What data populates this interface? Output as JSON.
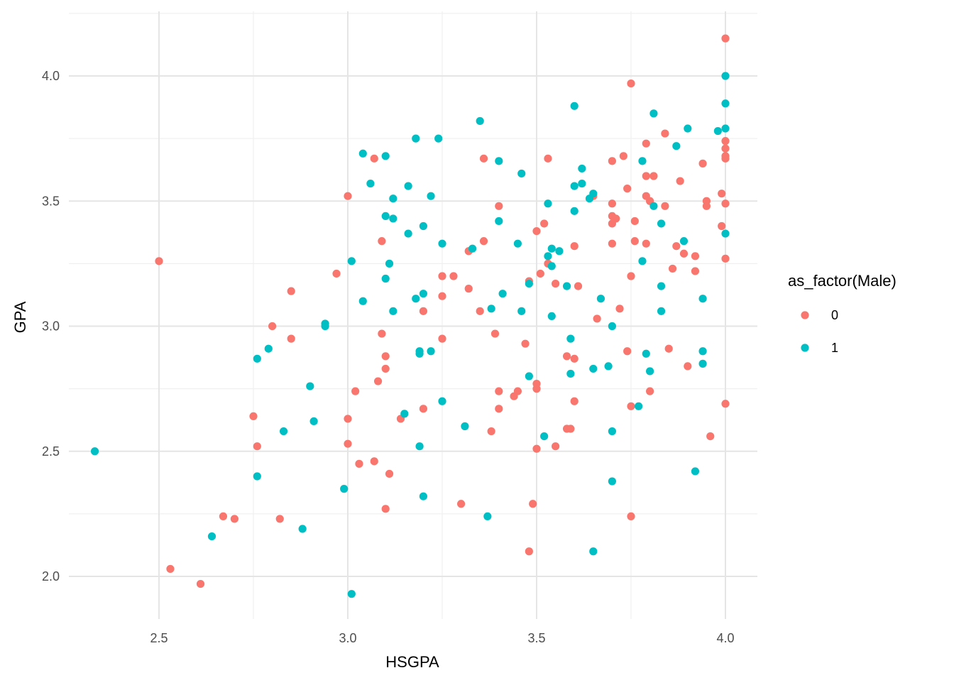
{
  "chart_data": {
    "type": "scatter",
    "title": "",
    "xlabel": "HSGPA",
    "ylabel": "GPA",
    "xlim": [
      2.3,
      4.08
    ],
    "ylim": [
      1.88,
      4.25
    ],
    "x_ticks": [
      2.5,
      3.0,
      3.5,
      4.0
    ],
    "x_tick_labels": [
      "2.5",
      "3.0",
      "3.5",
      "4.0"
    ],
    "y_ticks": [
      2.0,
      2.5,
      3.0,
      3.5,
      4.0
    ],
    "y_tick_labels": [
      "2.0",
      "2.5",
      "3.0",
      "3.5",
      "4.0"
    ],
    "grid": true,
    "legend": {
      "title": "as_factor(Male)",
      "position": "right",
      "entries": [
        "0",
        "1"
      ]
    },
    "colors": {
      "0": "#F8766D",
      "1": "#00BFC4"
    },
    "series": [
      {
        "name": "0",
        "color": "#F8766D",
        "points": [
          [
            4.0,
            4.15
          ],
          [
            3.75,
            3.97
          ],
          [
            3.84,
            3.77
          ],
          [
            3.79,
            3.73
          ],
          [
            4.0,
            3.74
          ],
          [
            4.0,
            3.71
          ],
          [
            4.0,
            3.68
          ],
          [
            4.0,
            3.67
          ],
          [
            3.73,
            3.68
          ],
          [
            3.53,
            3.67
          ],
          [
            3.36,
            3.67
          ],
          [
            3.07,
            3.67
          ],
          [
            3.7,
            3.66
          ],
          [
            3.94,
            3.65
          ],
          [
            3.79,
            3.6
          ],
          [
            3.81,
            3.6
          ],
          [
            3.88,
            3.58
          ],
          [
            3.74,
            3.55
          ],
          [
            3.99,
            3.53
          ],
          [
            3.79,
            3.52
          ],
          [
            3.0,
            3.52
          ],
          [
            3.8,
            3.5
          ],
          [
            3.95,
            3.5
          ],
          [
            3.65,
            3.52
          ],
          [
            3.95,
            3.48
          ],
          [
            3.84,
            3.48
          ],
          [
            3.7,
            3.49
          ],
          [
            4.0,
            3.49
          ],
          [
            3.4,
            3.48
          ],
          [
            3.7,
            3.44
          ],
          [
            3.71,
            3.43
          ],
          [
            3.7,
            3.41
          ],
          [
            3.52,
            3.41
          ],
          [
            3.76,
            3.42
          ],
          [
            3.99,
            3.4
          ],
          [
            3.5,
            3.38
          ],
          [
            3.76,
            3.34
          ],
          [
            3.79,
            3.33
          ],
          [
            3.7,
            3.33
          ],
          [
            3.09,
            3.34
          ],
          [
            3.36,
            3.34
          ],
          [
            3.87,
            3.32
          ],
          [
            3.6,
            3.32
          ],
          [
            3.32,
            3.3
          ],
          [
            3.89,
            3.29
          ],
          [
            3.92,
            3.28
          ],
          [
            4.0,
            3.27
          ],
          [
            2.5,
            3.26
          ],
          [
            3.53,
            3.25
          ],
          [
            3.86,
            3.23
          ],
          [
            3.92,
            3.22
          ],
          [
            3.51,
            3.21
          ],
          [
            2.97,
            3.21
          ],
          [
            3.25,
            3.2
          ],
          [
            3.28,
            3.2
          ],
          [
            3.75,
            3.2
          ],
          [
            3.48,
            3.18
          ],
          [
            3.55,
            3.17
          ],
          [
            3.61,
            3.16
          ],
          [
            3.32,
            3.15
          ],
          [
            2.85,
            3.14
          ],
          [
            3.25,
            3.12
          ],
          [
            3.72,
            3.07
          ],
          [
            3.35,
            3.06
          ],
          [
            3.2,
            3.06
          ],
          [
            3.66,
            3.03
          ],
          [
            2.8,
            3.0
          ],
          [
            3.09,
            2.97
          ],
          [
            3.39,
            2.97
          ],
          [
            2.85,
            2.95
          ],
          [
            3.25,
            2.95
          ],
          [
            3.47,
            2.93
          ],
          [
            3.85,
            2.91
          ],
          [
            3.74,
            2.9
          ],
          [
            3.1,
            2.88
          ],
          [
            3.58,
            2.88
          ],
          [
            3.6,
            2.87
          ],
          [
            3.9,
            2.84
          ],
          [
            3.1,
            2.83
          ],
          [
            3.08,
            2.78
          ],
          [
            3.5,
            2.77
          ],
          [
            3.5,
            2.75
          ],
          [
            3.02,
            2.74
          ],
          [
            3.4,
            2.74
          ],
          [
            3.45,
            2.74
          ],
          [
            3.8,
            2.74
          ],
          [
            3.44,
            2.72
          ],
          [
            3.6,
            2.7
          ],
          [
            4.0,
            2.69
          ],
          [
            3.75,
            2.68
          ],
          [
            3.2,
            2.67
          ],
          [
            3.4,
            2.67
          ],
          [
            2.75,
            2.64
          ],
          [
            3.14,
            2.63
          ],
          [
            3.0,
            2.63
          ],
          [
            3.58,
            2.59
          ],
          [
            3.59,
            2.59
          ],
          [
            3.38,
            2.58
          ],
          [
            3.96,
            2.56
          ],
          [
            3.0,
            2.53
          ],
          [
            2.76,
            2.52
          ],
          [
            3.55,
            2.52
          ],
          [
            3.5,
            2.51
          ],
          [
            3.07,
            2.46
          ],
          [
            3.03,
            2.45
          ],
          [
            3.11,
            2.41
          ],
          [
            3.3,
            2.29
          ],
          [
            3.49,
            2.29
          ],
          [
            3.1,
            2.27
          ],
          [
            2.67,
            2.24
          ],
          [
            3.75,
            2.24
          ],
          [
            2.7,
            2.23
          ],
          [
            2.82,
            2.23
          ],
          [
            3.48,
            2.1
          ],
          [
            2.53,
            2.03
          ],
          [
            2.61,
            1.97
          ]
        ]
      },
      {
        "name": "1",
        "color": "#00BFC4",
        "points": [
          [
            4.0,
            4.0
          ],
          [
            4.0,
            3.89
          ],
          [
            3.6,
            3.88
          ],
          [
            3.81,
            3.85
          ],
          [
            3.35,
            3.82
          ],
          [
            3.9,
            3.79
          ],
          [
            4.0,
            3.79
          ],
          [
            3.98,
            3.78
          ],
          [
            3.18,
            3.75
          ],
          [
            3.24,
            3.75
          ],
          [
            3.87,
            3.72
          ],
          [
            3.04,
            3.69
          ],
          [
            3.1,
            3.68
          ],
          [
            3.78,
            3.66
          ],
          [
            3.4,
            3.66
          ],
          [
            3.62,
            3.63
          ],
          [
            3.46,
            3.61
          ],
          [
            3.06,
            3.57
          ],
          [
            3.62,
            3.57
          ],
          [
            3.16,
            3.56
          ],
          [
            3.6,
            3.56
          ],
          [
            3.65,
            3.53
          ],
          [
            3.22,
            3.52
          ],
          [
            3.12,
            3.51
          ],
          [
            3.64,
            3.51
          ],
          [
            3.53,
            3.49
          ],
          [
            3.81,
            3.48
          ],
          [
            3.6,
            3.46
          ],
          [
            3.1,
            3.44
          ],
          [
            3.12,
            3.43
          ],
          [
            3.4,
            3.42
          ],
          [
            3.83,
            3.41
          ],
          [
            3.2,
            3.4
          ],
          [
            3.16,
            3.37
          ],
          [
            4.0,
            3.37
          ],
          [
            3.89,
            3.34
          ],
          [
            3.25,
            3.33
          ],
          [
            3.45,
            3.33
          ],
          [
            3.33,
            3.31
          ],
          [
            3.54,
            3.31
          ],
          [
            3.56,
            3.3
          ],
          [
            3.53,
            3.28
          ],
          [
            3.78,
            3.26
          ],
          [
            3.01,
            3.26
          ],
          [
            3.11,
            3.25
          ],
          [
            3.54,
            3.24
          ],
          [
            3.1,
            3.19
          ],
          [
            3.48,
            3.17
          ],
          [
            3.58,
            3.16
          ],
          [
            3.83,
            3.16
          ],
          [
            3.2,
            3.13
          ],
          [
            3.41,
            3.13
          ],
          [
            3.18,
            3.11
          ],
          [
            3.67,
            3.11
          ],
          [
            3.94,
            3.11
          ],
          [
            3.04,
            3.1
          ],
          [
            3.38,
            3.07
          ],
          [
            3.12,
            3.06
          ],
          [
            3.46,
            3.06
          ],
          [
            3.83,
            3.06
          ],
          [
            3.54,
            3.04
          ],
          [
            2.94,
            3.01
          ],
          [
            2.94,
            3.0
          ],
          [
            3.7,
            3.0
          ],
          [
            3.59,
            2.95
          ],
          [
            2.79,
            2.91
          ],
          [
            3.19,
            2.9
          ],
          [
            3.22,
            2.9
          ],
          [
            3.19,
            2.89
          ],
          [
            3.94,
            2.9
          ],
          [
            3.79,
            2.89
          ],
          [
            2.76,
            2.87
          ],
          [
            3.94,
            2.85
          ],
          [
            3.69,
            2.84
          ],
          [
            3.65,
            2.83
          ],
          [
            3.8,
            2.82
          ],
          [
            3.59,
            2.81
          ],
          [
            3.48,
            2.8
          ],
          [
            2.9,
            2.76
          ],
          [
            3.25,
            2.7
          ],
          [
            3.77,
            2.68
          ],
          [
            3.15,
            2.65
          ],
          [
            2.91,
            2.62
          ],
          [
            3.31,
            2.6
          ],
          [
            2.83,
            2.58
          ],
          [
            3.7,
            2.58
          ],
          [
            3.52,
            2.56
          ],
          [
            2.33,
            2.5
          ],
          [
            3.19,
            2.52
          ],
          [
            3.92,
            2.42
          ],
          [
            2.76,
            2.4
          ],
          [
            3.7,
            2.38
          ],
          [
            2.99,
            2.35
          ],
          [
            3.2,
            2.32
          ],
          [
            3.37,
            2.24
          ],
          [
            2.88,
            2.19
          ],
          [
            2.64,
            2.16
          ],
          [
            3.65,
            2.1
          ],
          [
            3.01,
            1.93
          ]
        ]
      }
    ]
  }
}
